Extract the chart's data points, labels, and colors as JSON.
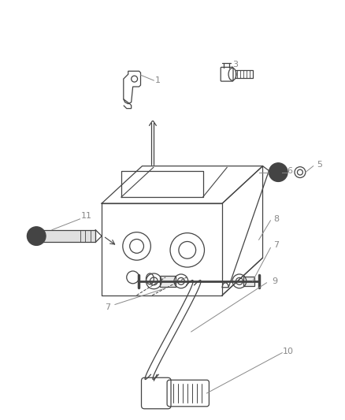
{
  "background_color": "#ffffff",
  "line_color": "#444444",
  "text_color": "#888888",
  "fig_width": 4.38,
  "fig_height": 5.33,
  "dpi": 100
}
